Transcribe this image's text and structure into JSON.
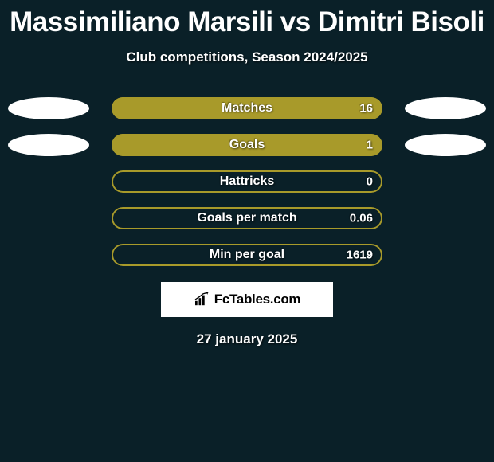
{
  "title": "Massimiliano Marsili vs Dimitri Bisoli",
  "subtitle": "Club competitions, Season 2024/2025",
  "date": "27 january 2025",
  "logo": {
    "text": "FcTables.com"
  },
  "colors": {
    "background": "#0a2028",
    "bar_border": "#a89a2a",
    "bar_fill": "#a89a2a",
    "bar_bg": "transparent",
    "ellipse": "#ffffff",
    "text": "#ffffff"
  },
  "ellipse_size": {
    "width": 102,
    "height": 28
  },
  "stats": [
    {
      "label": "Matches",
      "value": "16",
      "fill_pct": 100,
      "left_ellipse": true,
      "right_ellipse": true
    },
    {
      "label": "Goals",
      "value": "1",
      "fill_pct": 100,
      "left_ellipse": true,
      "right_ellipse": true
    },
    {
      "label": "Hattricks",
      "value": "0",
      "fill_pct": 0,
      "left_ellipse": false,
      "right_ellipse": false
    },
    {
      "label": "Goals per match",
      "value": "0.06",
      "fill_pct": 0,
      "left_ellipse": false,
      "right_ellipse": false
    },
    {
      "label": "Min per goal",
      "value": "1619",
      "fill_pct": 0,
      "left_ellipse": false,
      "right_ellipse": false
    }
  ]
}
